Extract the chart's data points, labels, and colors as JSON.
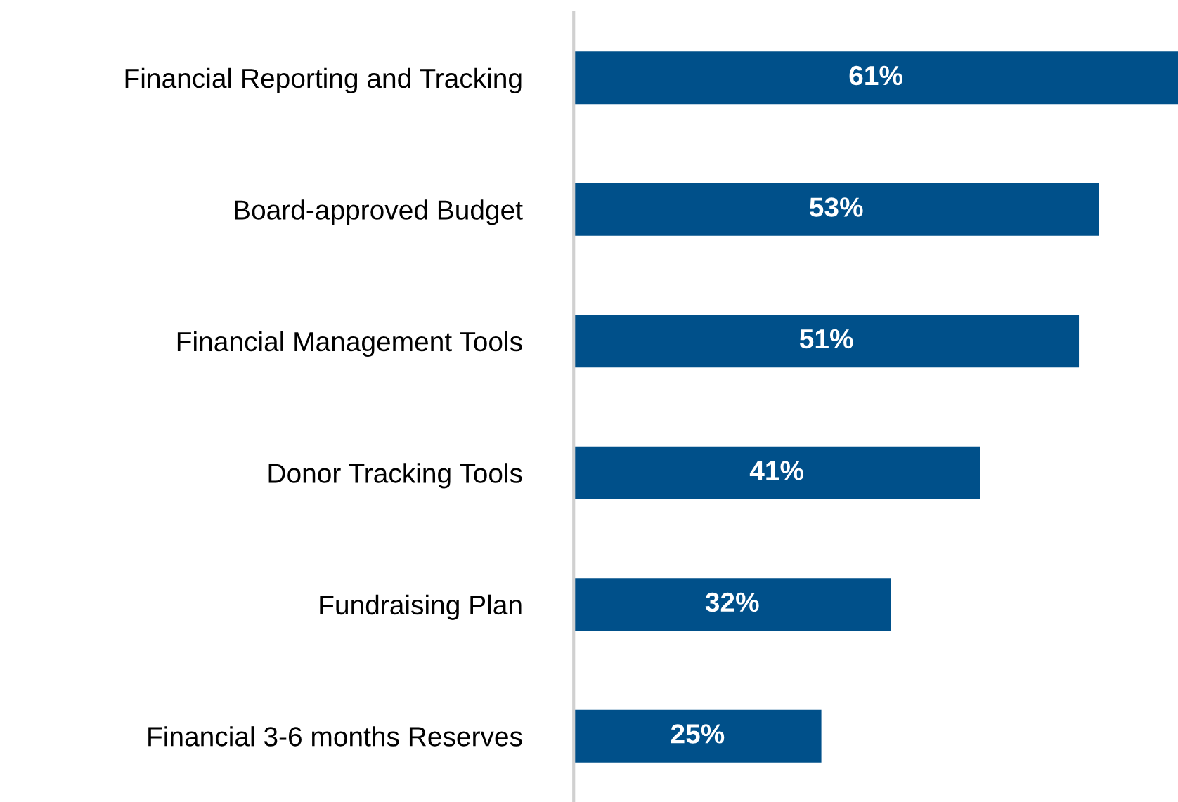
{
  "chart_data": {
    "type": "bar",
    "orientation": "horizontal",
    "categories": [
      "Financial Reporting and Tracking",
      "Board-approved Budget",
      "Financial Management Tools",
      "Donor Tracking Tools",
      "Fundraising Plan",
      "Financial 3-6 months Reserves"
    ],
    "values": [
      61,
      53,
      51,
      41,
      32,
      25
    ],
    "value_labels": [
      "61%",
      "53%",
      "51%",
      "41%",
      "32%",
      "25%"
    ],
    "color": "#00508a",
    "grid": false,
    "legend": false
  }
}
